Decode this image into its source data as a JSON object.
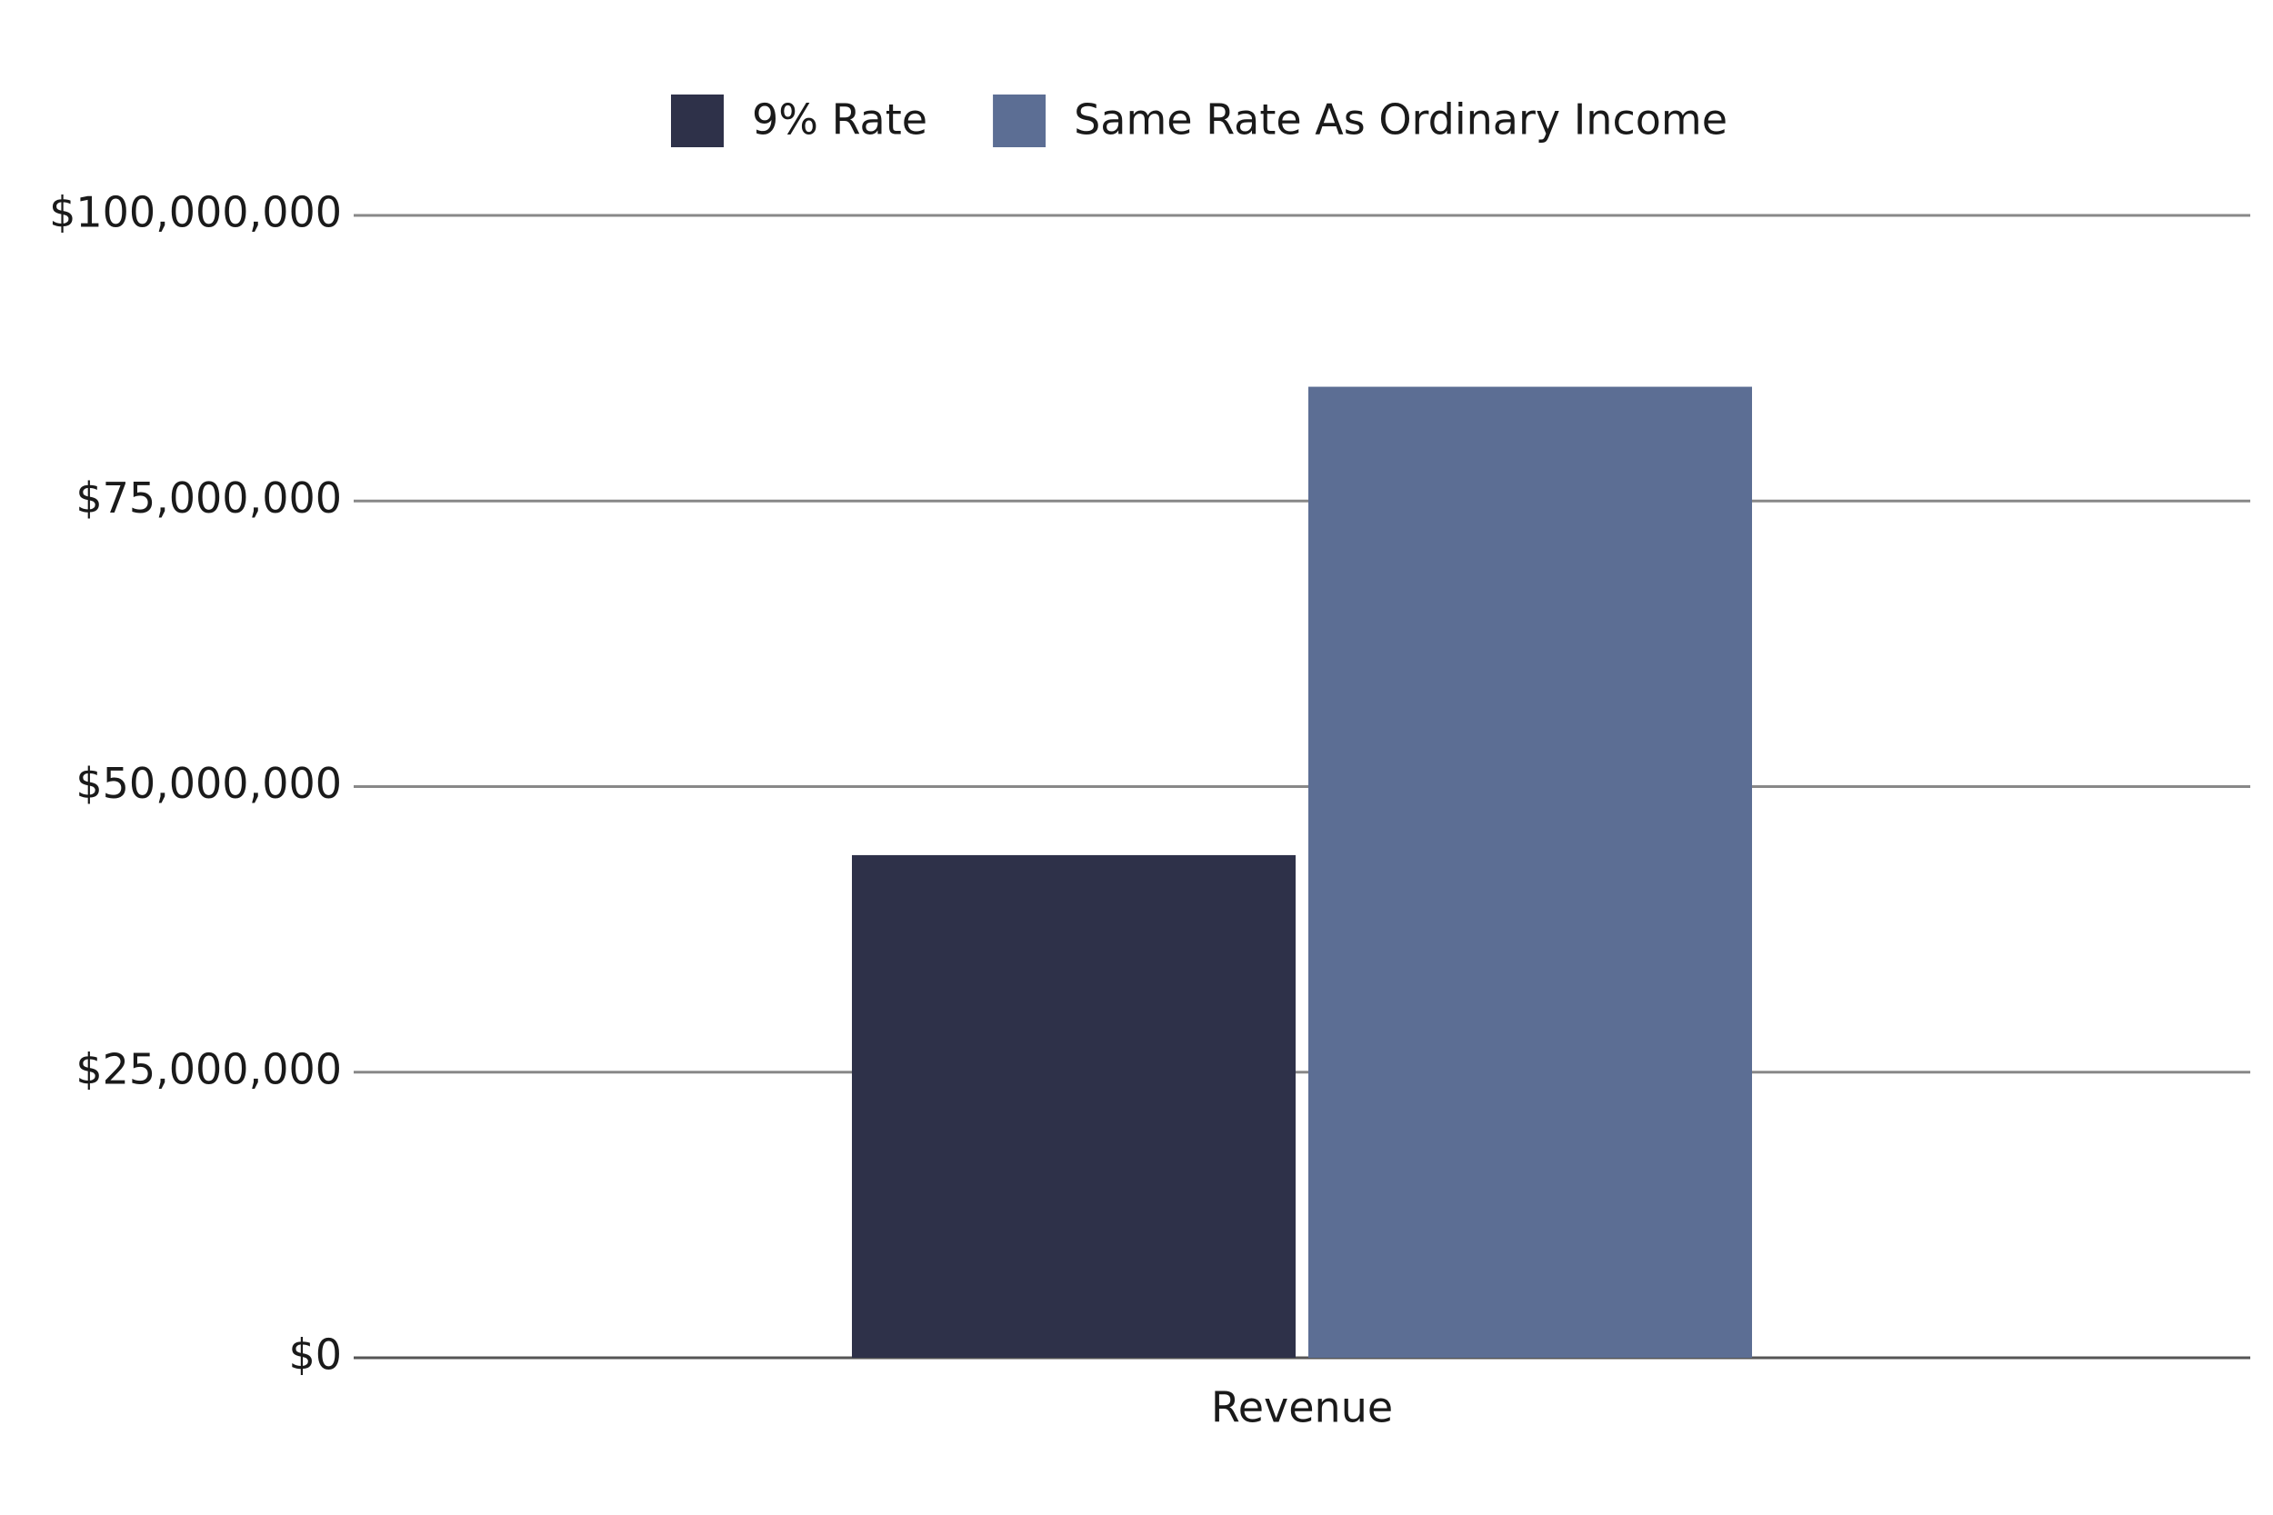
{
  "chart_data": {
    "type": "bar",
    "categories": [
      "Revenue"
    ],
    "series": [
      {
        "name": "9% Rate",
        "color": "#2e3149",
        "values": [
          44000000
        ]
      },
      {
        "name": "Same Rate As Ordinary Income",
        "color": "#5c6e94",
        "values": [
          85000000
        ]
      }
    ],
    "ylim": [
      0,
      100000000
    ],
    "yticks": [
      {
        "value": 0,
        "label": "$0"
      },
      {
        "value": 25000000,
        "label": "$25,000,000"
      },
      {
        "value": 50000000,
        "label": "$50,000,000"
      },
      {
        "value": 75000000,
        "label": "$75,000,000"
      },
      {
        "value": 100000000,
        "label": "$100,000,000"
      }
    ],
    "grid": true,
    "legend": "top"
  }
}
